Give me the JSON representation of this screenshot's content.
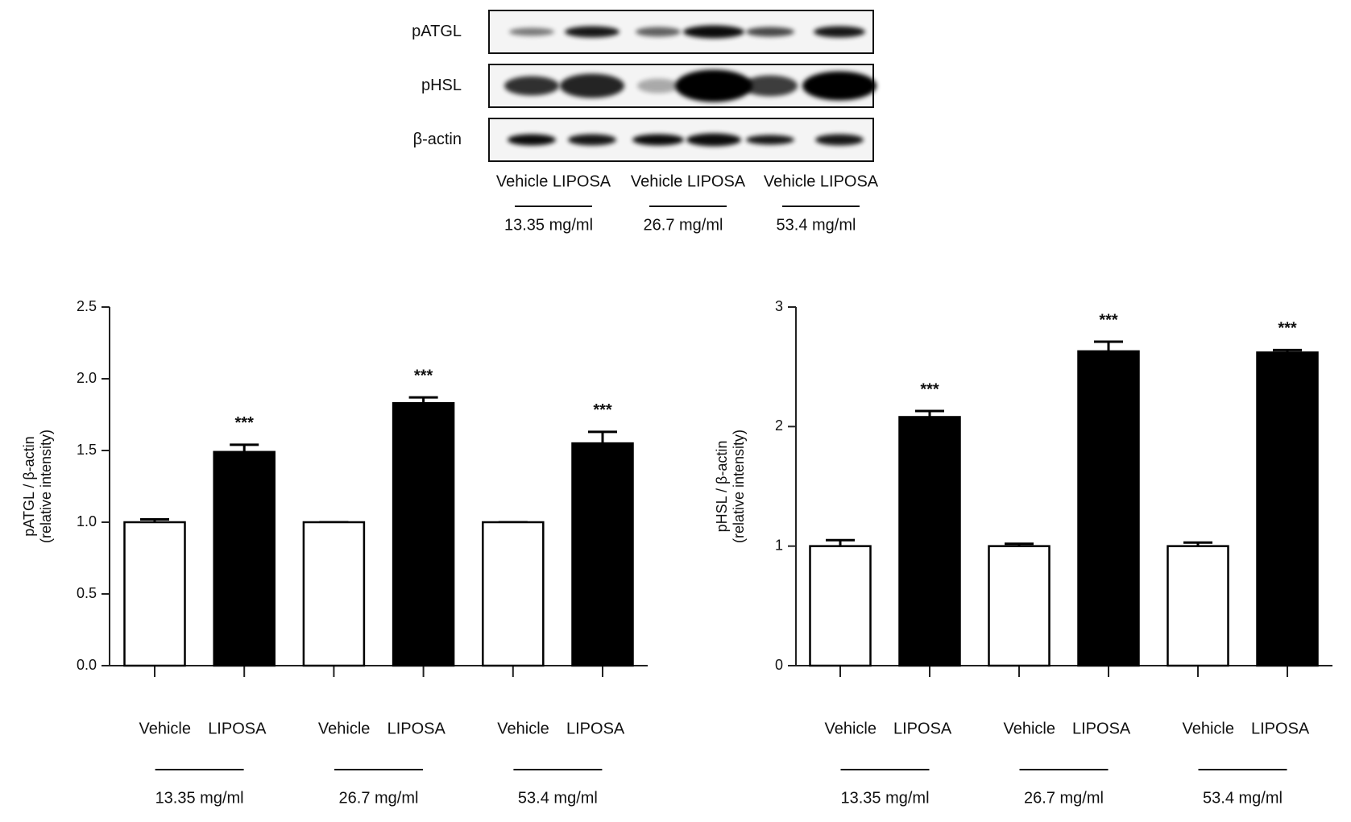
{
  "blot": {
    "rows": [
      "pATGL",
      "pHSL",
      "β-actin"
    ],
    "lane_labels": [
      "Vehicle LIPOSA",
      "Vehicle LIPOSA",
      "Vehicle LIPOSA"
    ],
    "group_labels": [
      "13.35 mg/ml",
      "26.7 mg/ml",
      "53.4 mg/ml"
    ]
  },
  "chart_data": [
    {
      "type": "bar",
      "ylabel": [
        "pATGL / β-actin",
        "(relative intensity)"
      ],
      "categories": [
        "Vehicle",
        "LIPOSA",
        "Vehicle",
        "LIPOSA",
        "Vehicle",
        "LIPOSA"
      ],
      "values": [
        1.0,
        1.49,
        1.0,
        1.83,
        1.0,
        1.55
      ],
      "errors": [
        0.02,
        0.05,
        0,
        0.04,
        0,
        0.08
      ],
      "colors": [
        "#ffffff",
        "#000000",
        "#ffffff",
        "#000000",
        "#ffffff",
        "#000000"
      ],
      "annotations": [
        null,
        "***",
        null,
        "***",
        null,
        "***"
      ],
      "group_labels": [
        "13.35 mg/ml",
        "26.7 mg/ml",
        "53.4 mg/ml"
      ],
      "ylim": [
        0,
        2.5
      ],
      "yticks": [
        {
          "value": 0,
          "label": "0.0"
        },
        0.5,
        {
          "value": 1,
          "label": "1.0"
        },
        1.5,
        {
          "value": 2,
          "label": "2.0"
        },
        2.5
      ]
    },
    {
      "type": "bar",
      "ylabel": [
        "pHSL / β-actin",
        "(relative intensity)"
      ],
      "categories": [
        "Vehicle",
        "LIPOSA",
        "Vehicle",
        "LIPOSA",
        "Vehicle",
        "LIPOSA"
      ],
      "values": [
        1.0,
        2.08,
        1.0,
        2.63,
        1.0,
        2.62
      ],
      "errors": [
        0.05,
        0.05,
        0.02,
        0.08,
        0.03,
        0.02
      ],
      "colors": [
        "#ffffff",
        "#000000",
        "#ffffff",
        "#000000",
        "#ffffff",
        "#000000"
      ],
      "annotations": [
        null,
        "***",
        null,
        "***",
        null,
        "***"
      ],
      "group_labels": [
        "13.35 mg/ml",
        "26.7 mg/ml",
        "53.4 mg/ml"
      ],
      "ylim": [
        0,
        3
      ],
      "yticks": [
        0,
        1,
        2,
        3
      ]
    }
  ]
}
